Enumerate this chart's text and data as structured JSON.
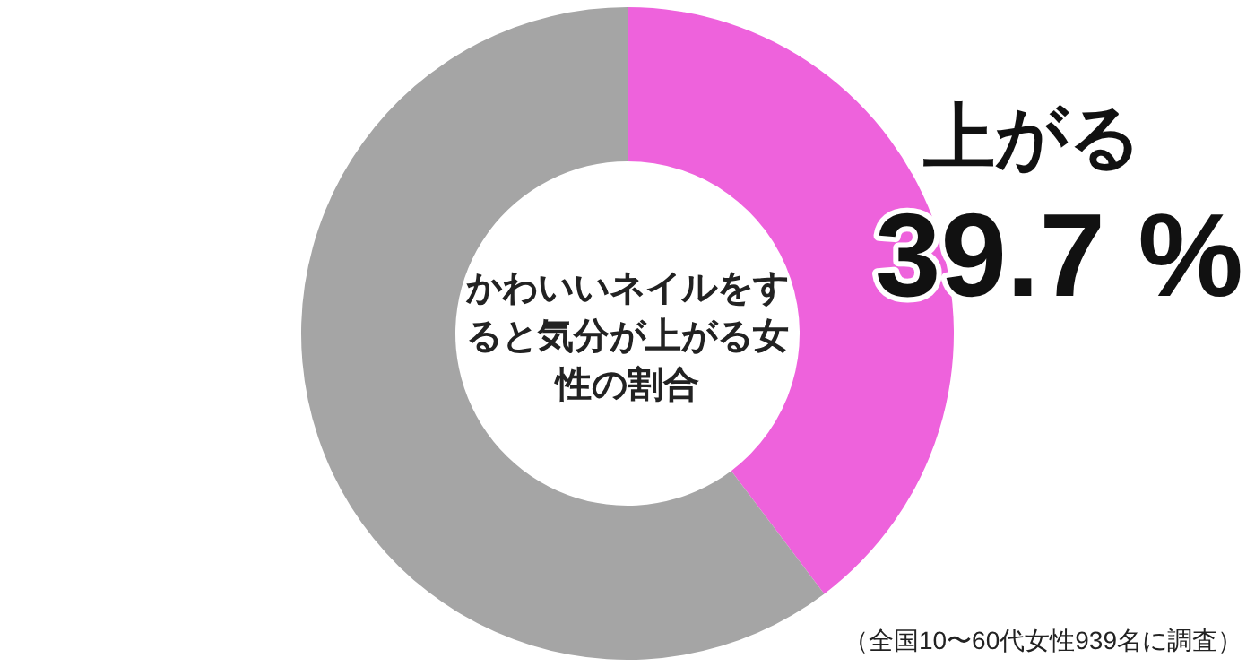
{
  "chart_data": {
    "type": "donut",
    "title": "かわいいネイルをすると気分が上がる女性の割合",
    "categories": [
      "上がる",
      null
    ],
    "values": [
      39.7,
      60.3
    ],
    "colors": [
      "#ee62dc",
      "#a5a5a5"
    ],
    "value_labels": [
      "39.7 %",
      null
    ],
    "annotations": [
      "（全国10〜60代女性939名に調査）"
    ]
  }
}
